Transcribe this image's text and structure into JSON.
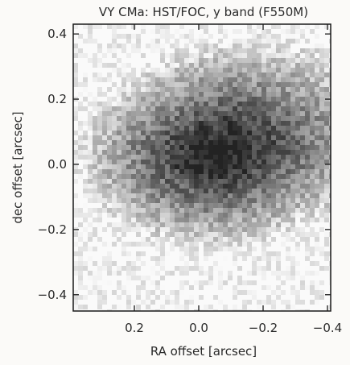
{
  "chart_data": {
    "type": "heatmap",
    "title": "VY CMa: HST/FOC, y band (F550M)",
    "xlabel": "RA offset [arcsec]",
    "ylabel": "dec offset [arcsec]",
    "xlim": [
      0.39,
      -0.41
    ],
    "ylim": [
      -0.45,
      0.43
    ],
    "x_ticks": [
      0.2,
      0.0,
      -0.2,
      -0.4
    ],
    "x_tick_labels": [
      "0.2",
      "0.0",
      "−0.2",
      "−0.4"
    ],
    "y_ticks": [
      -0.4,
      -0.2,
      0.0,
      0.2,
      0.4
    ],
    "y_tick_labels": [
      "−0.4",
      "−0.2",
      "0.0",
      "0.2",
      "0.4"
    ],
    "colormap": "grayscale, dark = bright",
    "image_description_values": {
      "peak_offset_ra": -0.05,
      "peak_offset_dec": 0.03
    },
    "grid": false
  }
}
